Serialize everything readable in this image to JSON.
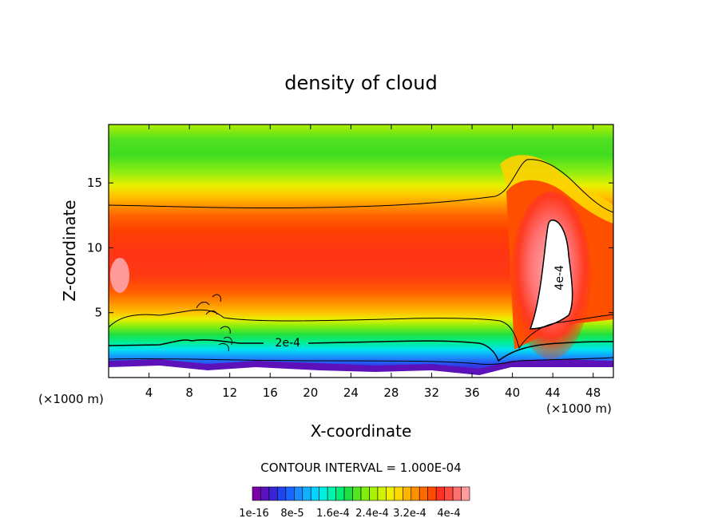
{
  "chart_data": {
    "type": "heatmap",
    "title": "density of cloud",
    "xlabel": "X-coordinate",
    "ylabel": "Z-coordinate",
    "x_unit_left": "(×1000 m)",
    "x_unit_right": "(×1000 m)",
    "xlim": [
      0,
      50
    ],
    "ylim": [
      0,
      19.5
    ],
    "x_ticks": [
      4,
      8,
      12,
      16,
      20,
      24,
      28,
      32,
      36,
      40,
      44,
      48
    ],
    "y_ticks": [
      5,
      10,
      15
    ],
    "contour_interval_text": "CONTOUR INTERVAL = 1.000E-04",
    "contour_labels": [
      {
        "text": "2e-4",
        "x": 16.5,
        "z": 2.7
      },
      {
        "text": "4e-4",
        "x": 45.0,
        "z": 7.7
      }
    ],
    "colorbar": {
      "colors": [
        "#7a00a8",
        "#5a10c0",
        "#3a24d8",
        "#2244ee",
        "#1a66ff",
        "#1a8cff",
        "#10b0ff",
        "#00d4ff",
        "#00eee0",
        "#00f4b0",
        "#00ee78",
        "#20e040",
        "#50e620",
        "#80ee10",
        "#a8f200",
        "#d0f400",
        "#f0f000",
        "#ffd800",
        "#ffb400",
        "#ff9000",
        "#ff6a00",
        "#ff4a00",
        "#ff3020",
        "#ff4a40",
        "#ff7070",
        "#ff9c9c"
      ],
      "tick_labels": [
        "1e-16",
        "8e-5",
        "1.6e-4",
        "2.4e-4",
        "3.2e-4",
        "4e-4"
      ]
    }
  }
}
